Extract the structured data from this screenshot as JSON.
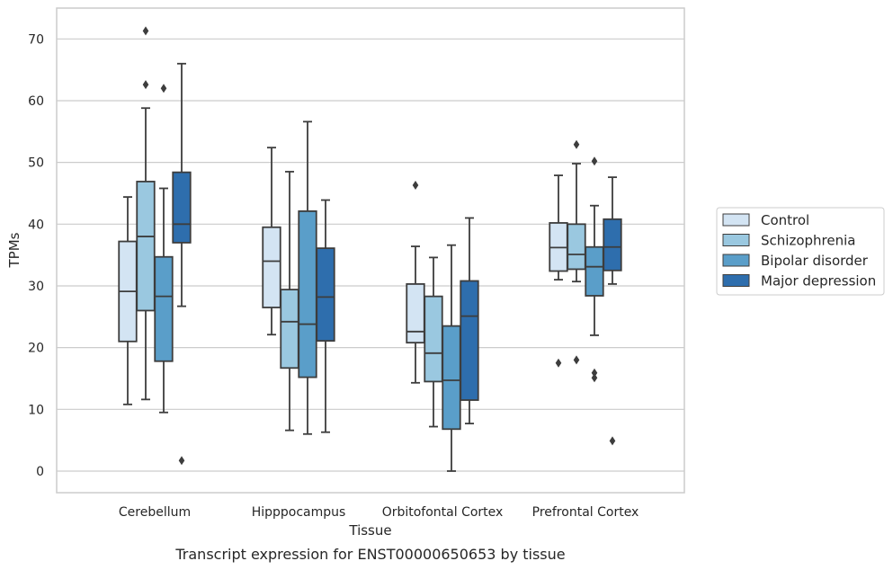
{
  "chart_data": {
    "type": "box",
    "caption": "Transcript expression for ENST00000650653 by tissue",
    "xlabel": "Tissue",
    "ylabel": "TPMs",
    "ylim": [
      -3.5,
      75
    ],
    "yticks": [
      0,
      10,
      20,
      30,
      40,
      50,
      60,
      70
    ],
    "grid": "horizontal",
    "legend_position": "right",
    "categories": [
      "Cerebellum",
      "Hipppocampus",
      "Orbitofontal Cortex",
      "Prefrontal Cortex"
    ],
    "series": [
      {
        "name": "Control",
        "color": "#d3e4f3",
        "boxes": [
          {
            "whisker_low": 10.8,
            "q1": 21.0,
            "median": 29.1,
            "q3": 37.2,
            "whisker_high": 44.4,
            "outliers": []
          },
          {
            "whisker_low": 22.1,
            "q1": 26.5,
            "median": 34.0,
            "q3": 39.5,
            "whisker_high": 52.4,
            "outliers": []
          },
          {
            "whisker_low": 14.3,
            "q1": 20.8,
            "median": 22.6,
            "q3": 30.3,
            "whisker_high": 36.4,
            "outliers": [
              46.3
            ]
          },
          {
            "whisker_low": 31.0,
            "q1": 32.4,
            "median": 36.2,
            "q3": 40.2,
            "whisker_high": 47.9,
            "outliers": [
              17.5
            ]
          }
        ]
      },
      {
        "name": "Schizophrenia",
        "color": "#9ac8e0",
        "boxes": [
          {
            "whisker_low": 11.6,
            "q1": 26.0,
            "median": 38.0,
            "q3": 46.9,
            "whisker_high": 58.8,
            "outliers": [
              71.3,
              62.6
            ]
          },
          {
            "whisker_low": 6.6,
            "q1": 16.7,
            "median": 24.2,
            "q3": 29.4,
            "whisker_high": 48.5,
            "outliers": []
          },
          {
            "whisker_low": 7.2,
            "q1": 14.5,
            "median": 19.1,
            "q3": 28.3,
            "whisker_high": 34.6,
            "outliers": []
          },
          {
            "whisker_low": 30.7,
            "q1": 32.7,
            "median": 35.1,
            "q3": 40.0,
            "whisker_high": 49.8,
            "outliers": [
              52.9,
              18.0
            ]
          }
        ]
      },
      {
        "name": "Bipolar disorder",
        "color": "#5a9ec9",
        "boxes": [
          {
            "whisker_low": 9.5,
            "q1": 17.8,
            "median": 28.3,
            "q3": 34.7,
            "whisker_high": 45.8,
            "outliers": [
              62.0
            ]
          },
          {
            "whisker_low": 6.0,
            "q1": 15.2,
            "median": 23.8,
            "q3": 42.1,
            "whisker_high": 56.6,
            "outliers": []
          },
          {
            "whisker_low": 0.0,
            "q1": 6.8,
            "median": 14.7,
            "q3": 23.5,
            "whisker_high": 36.6,
            "outliers": []
          },
          {
            "whisker_low": 22.0,
            "q1": 28.4,
            "median": 33.1,
            "q3": 36.3,
            "whisker_high": 43.0,
            "outliers": [
              50.2,
              15.9,
              15.1
            ]
          }
        ]
      },
      {
        "name": "Major depression",
        "color": "#2e6ead",
        "boxes": [
          {
            "whisker_low": 26.7,
            "q1": 37.0,
            "median": 40.0,
            "q3": 48.4,
            "whisker_high": 66.0,
            "outliers": [
              1.7
            ]
          },
          {
            "whisker_low": 6.3,
            "q1": 21.1,
            "median": 28.2,
            "q3": 36.1,
            "whisker_high": 43.9,
            "outliers": []
          },
          {
            "whisker_low": 7.7,
            "q1": 11.5,
            "median": 25.1,
            "q3": 30.8,
            "whisker_high": 41.0,
            "outliers": []
          },
          {
            "whisker_low": 30.3,
            "q1": 32.5,
            "median": 36.3,
            "q3": 40.8,
            "whisker_high": 47.6,
            "outliers": [
              4.9
            ]
          }
        ]
      }
    ]
  }
}
